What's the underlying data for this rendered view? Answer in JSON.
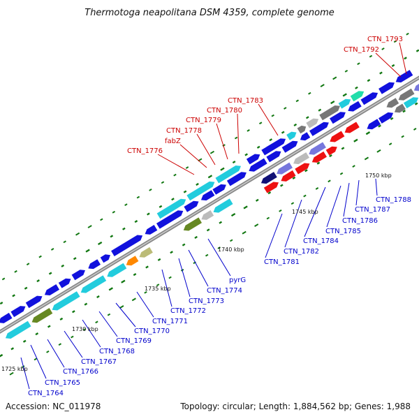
{
  "title": "Thermotoga neapolitana DSM 4359, complete genome",
  "footer": {
    "accession": "Accession: NC_011978",
    "summary": "Topology: circular; Length: 1,884,562 bp; Genes: 1,988"
  },
  "colors": {
    "backbone": "#888888",
    "forward_label": "#cc0000",
    "reverse_label": "#0000cc",
    "tick": "#117711",
    "blue": "#1111dd",
    "red": "#ee1111",
    "cyan": "#22ccdd",
    "olive": "#668822",
    "gray": "#777777",
    "lightgray": "#bbbbbb",
    "navy": "#111177",
    "lavender": "#7777dd",
    "khaki": "#bbbb77",
    "orange": "#ff8800",
    "teal": "#22ddaa"
  },
  "kbp_markers": [
    "1725 kbp",
    "1730 kbp",
    "1735 kbp",
    "1740 kbp",
    "1745 kbp",
    "1750 kbp"
  ],
  "forward_labels": [
    "CTN_1793",
    "CTN_1792",
    "CTN_1783",
    "CTN_1780",
    "CTN_1779",
    "CTN_1778",
    "fabZ",
    "CTN_1776"
  ],
  "reverse_labels": [
    "CTN_1788",
    "CTN_1787",
    "CTN_1786",
    "CTN_1785",
    "CTN_1784",
    "CTN_1782",
    "CTN_1781",
    "pyrG",
    "CTN_1774",
    "CTN_1773",
    "CTN_1772",
    "CTN_1771",
    "CTN_1770",
    "CTN_1769",
    "CTN_1768",
    "CTN_1767",
    "CTN_1766",
    "CTN_1765",
    "CTN_1764"
  ]
}
